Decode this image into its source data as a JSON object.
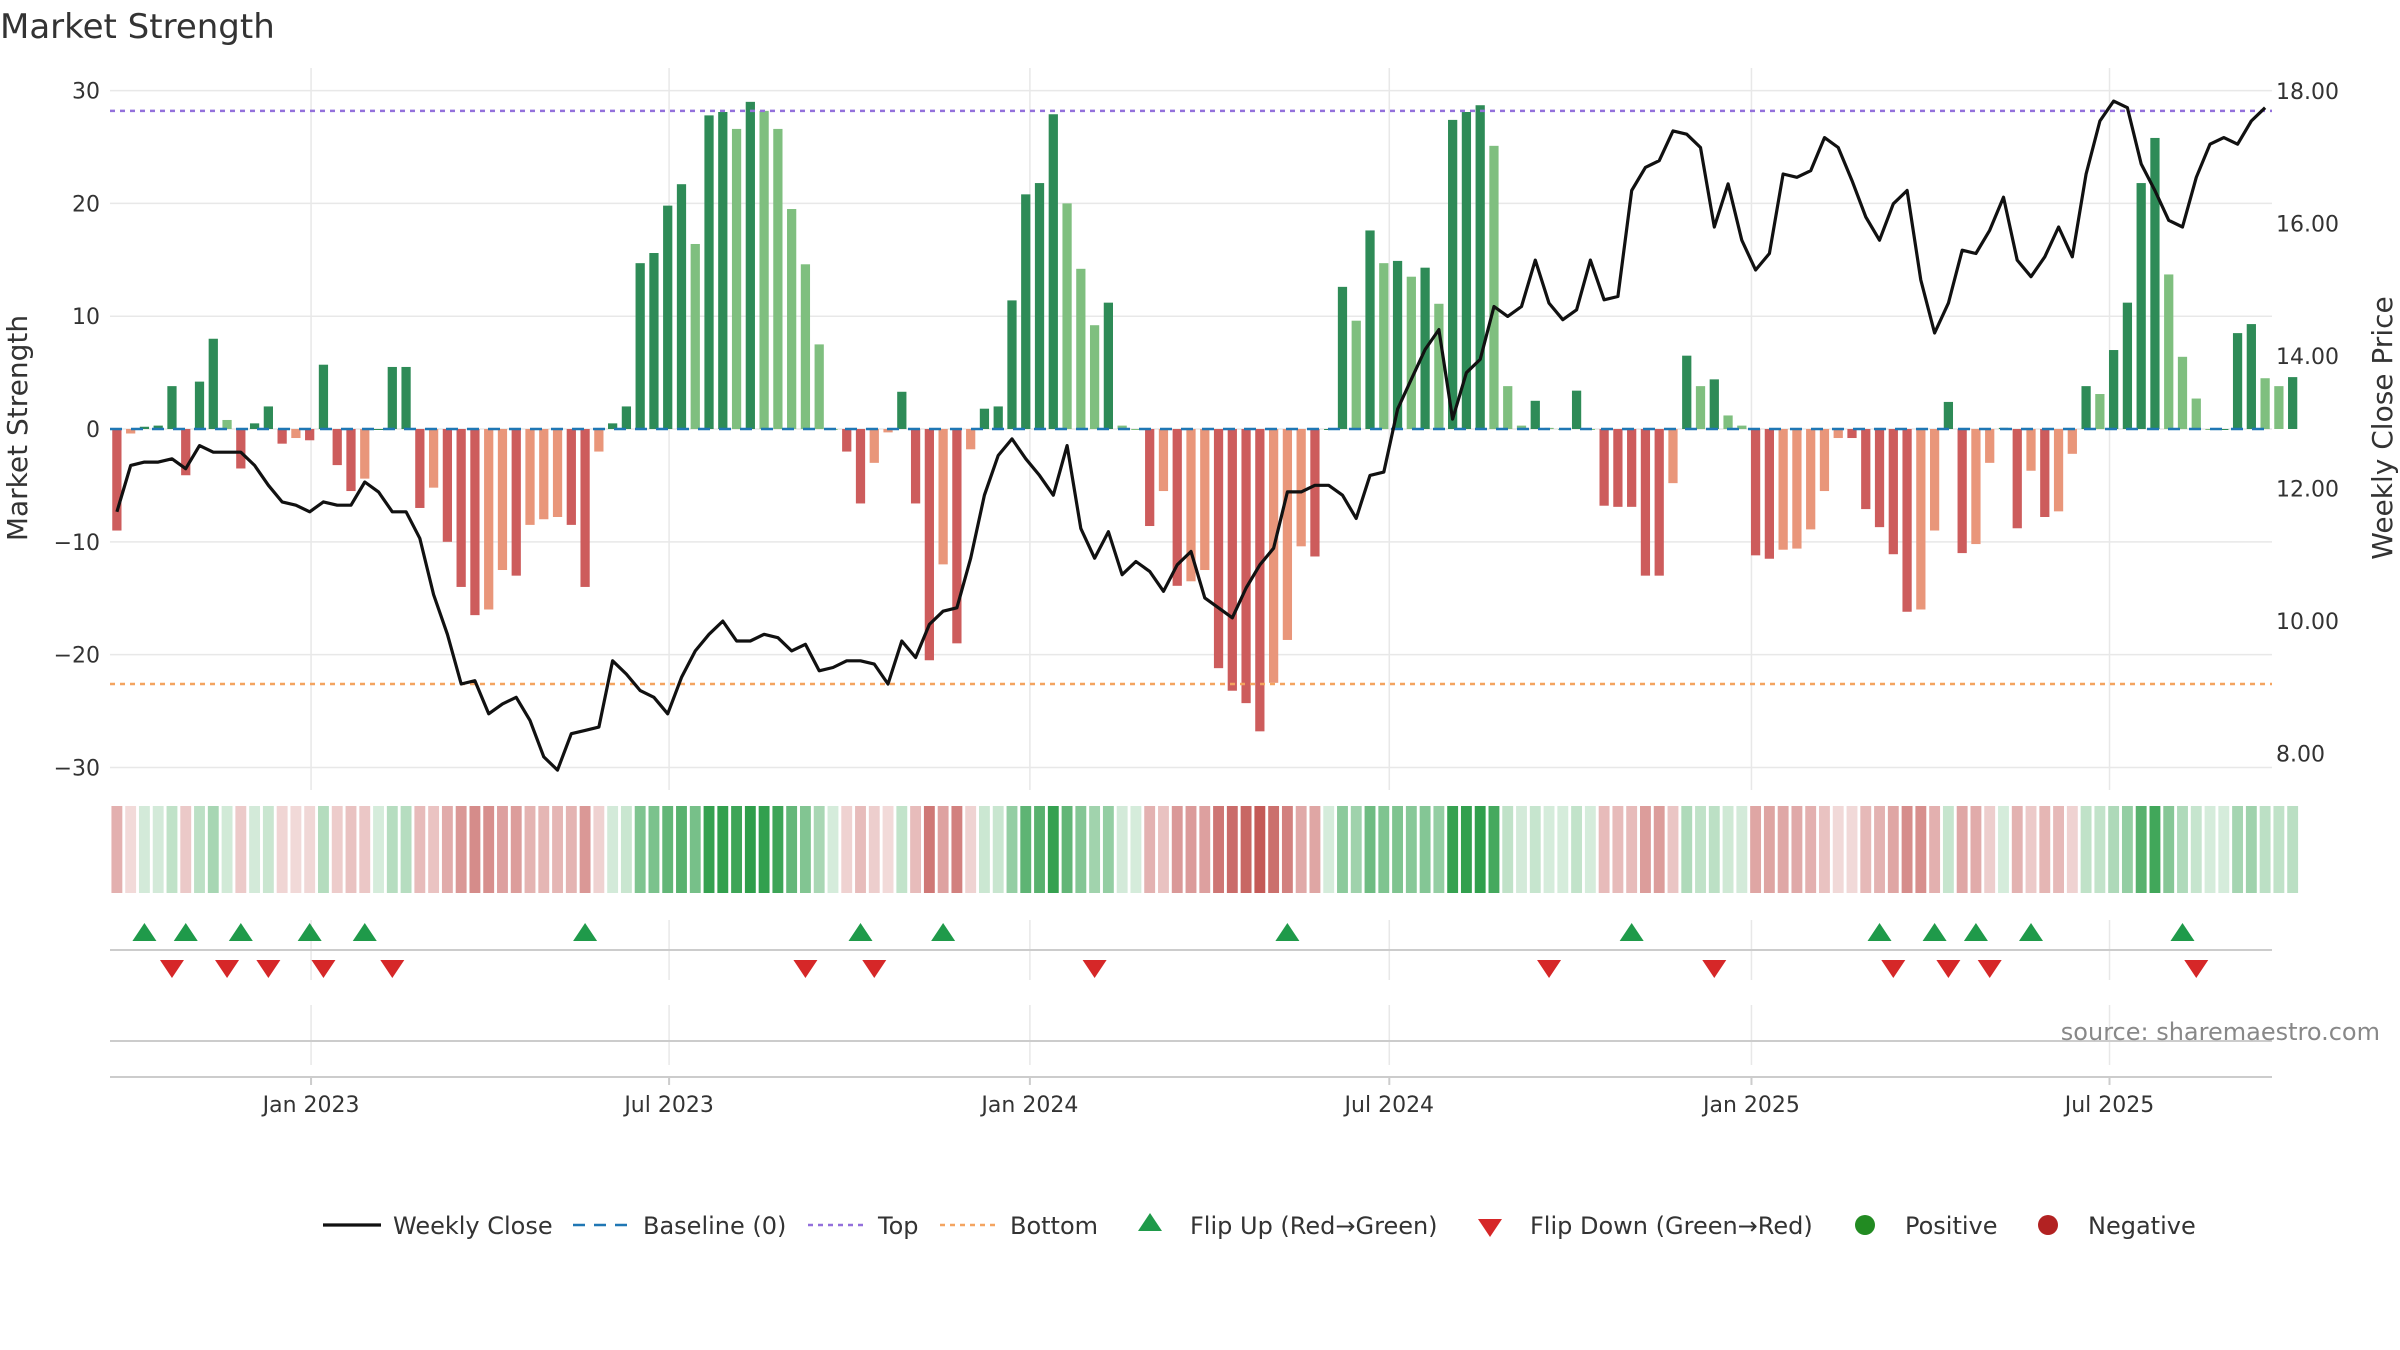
{
  "chart_data": {
    "type": "bar",
    "title": "Market Strength",
    "ylabel_left": "Market Strength",
    "ylabel_right": "Weekly Close Price",
    "source_text": "source: sharemaestro.com",
    "left_ylim": [
      -32,
      32
    ],
    "left_ticks": [
      30,
      20,
      10,
      0,
      -10,
      -20,
      -30
    ],
    "left_tick_labels": [
      "30",
      "20",
      "10",
      "0",
      "−10",
      "−20",
      "−30"
    ],
    "right_ylim": [
      7.45,
      18.35
    ],
    "right_ticks": [
      18,
      16,
      14,
      12,
      10,
      8
    ],
    "right_tick_labels": [
      "18.00",
      "16.00",
      "14.00",
      "12.00",
      "10.00",
      "8.00"
    ],
    "x_range": [
      0,
      157
    ],
    "x_ticks": [
      {
        "label": "Jan 2023",
        "x": 14.6
      },
      {
        "label": "Jul 2023",
        "x": 40.6
      },
      {
        "label": "Jan 2024",
        "x": 66.8
      },
      {
        "label": "Jul 2024",
        "x": 92.9
      },
      {
        "label": "Jan 2025",
        "x": 119.2
      },
      {
        "label": "Jul 2025",
        "x": 145.2
      }
    ],
    "top_line": 28.2,
    "bottom_line": -22.6,
    "strength": [
      -9,
      -0.4,
      0.2,
      0.3,
      3.8,
      -4.1,
      4.2,
      8,
      0.8,
      -3.5,
      0.5,
      2,
      -1.3,
      -0.8,
      -1,
      5.7,
      -3.2,
      -5.5,
      -4.4,
      0,
      5.5,
      5.5,
      -7,
      -5.2,
      -10,
      -14,
      -16.5,
      -16,
      -12.5,
      -13,
      -8.5,
      -8,
      -7.8,
      -8.5,
      -14,
      -2,
      0.5,
      2,
      14.7,
      15.6,
      19.8,
      21.7,
      16.4,
      27.8,
      28.1,
      26.6,
      29,
      28.2,
      26.6,
      19.5,
      14.6,
      7.5,
      0,
      -2,
      -6.6,
      -3,
      -0.3,
      3.3,
      -6.6,
      -20.5,
      -12,
      -19,
      -1.8,
      1.8,
      2,
      11.4,
      20.8,
      21.8,
      27.9,
      20,
      14.2,
      9.2,
      11.2,
      0.3,
      0,
      -8.6,
      -5.5,
      -13.9,
      -13.5,
      -12.5,
      -21.2,
      -23.2,
      -24.3,
      -26.8,
      -22.5,
      -18.7,
      -10.4,
      -11.3,
      0,
      12.6,
      9.6,
      17.6,
      14.7,
      14.9,
      13.5,
      14.3,
      11.1,
      27.4,
      28.1,
      28.7,
      25.1,
      3.8,
      0.3,
      2.5,
      0.1,
      0,
      3.4,
      0,
      -6.8,
      -6.9,
      -6.9,
      -13,
      -13,
      -4.8,
      6.5,
      3.8,
      4.4,
      1.2,
      0.3,
      -11.2,
      -11.5,
      -10.7,
      -10.6,
      -8.9,
      -5.5,
      -0.8,
      -0.8,
      -7.1,
      -8.7,
      -11.1,
      -16.2,
      -16,
      -9,
      2.4,
      -11,
      -10.2,
      -3,
      0.1,
      -8.8,
      -3.7,
      -7.8,
      -7.3,
      -2.2,
      3.8,
      3.1,
      7,
      11.2,
      21.8,
      25.8,
      13.7,
      6.4,
      2.7,
      0,
      0,
      8.5,
      9.3,
      4.5,
      3.8,
      4.6
    ],
    "weekly_close": [
      [
        0,
        11.65
      ],
      [
        1,
        12.35
      ],
      [
        2,
        12.4
      ],
      [
        3,
        12.4
      ],
      [
        4,
        12.45
      ],
      [
        5,
        12.3
      ],
      [
        6,
        12.65
      ],
      [
        7,
        12.55
      ],
      [
        8,
        12.55
      ],
      [
        9,
        12.55
      ],
      [
        10,
        12.35
      ],
      [
        11,
        12.05
      ],
      [
        12,
        11.8
      ],
      [
        13,
        11.75
      ],
      [
        14,
        11.65
      ],
      [
        15,
        11.8
      ],
      [
        16,
        11.75
      ],
      [
        17,
        11.75
      ],
      [
        18,
        12.1
      ],
      [
        19,
        11.95
      ],
      [
        20,
        11.65
      ],
      [
        21,
        11.65
      ],
      [
        22,
        11.25
      ],
      [
        23,
        10.4
      ],
      [
        24,
        9.8
      ],
      [
        25,
        9.05
      ],
      [
        26,
        9.1
      ],
      [
        27,
        8.6
      ],
      [
        28,
        8.75
      ],
      [
        29,
        8.85
      ],
      [
        30,
        8.5
      ],
      [
        31,
        7.95
      ],
      [
        32,
        7.75
      ],
      [
        33,
        8.3
      ],
      [
        34,
        8.35
      ],
      [
        35,
        8.4
      ],
      [
        36,
        9.4
      ],
      [
        37,
        9.2
      ],
      [
        38,
        8.95
      ],
      [
        39,
        8.85
      ],
      [
        40,
        8.6
      ],
      [
        41,
        9.15
      ],
      [
        42,
        9.55
      ],
      [
        43,
        9.8
      ],
      [
        44,
        10.0
      ],
      [
        45,
        9.7
      ],
      [
        46,
        9.7
      ],
      [
        47,
        9.8
      ],
      [
        48,
        9.75
      ],
      [
        49,
        9.55
      ],
      [
        50,
        9.65
      ],
      [
        51,
        9.25
      ],
      [
        52,
        9.3
      ],
      [
        53,
        9.4
      ],
      [
        54,
        9.4
      ],
      [
        55,
        9.35
      ],
      [
        56,
        9.05
      ],
      [
        57,
        9.7
      ],
      [
        58,
        9.45
      ],
      [
        59,
        9.95
      ],
      [
        60,
        10.15
      ],
      [
        61,
        10.2
      ],
      [
        62,
        10.95
      ],
      [
        63,
        11.9
      ],
      [
        64,
        12.5
      ],
      [
        65,
        12.75
      ],
      [
        66,
        12.45
      ],
      [
        67,
        12.2
      ],
      [
        68,
        11.9
      ],
      [
        69,
        12.65
      ],
      [
        70,
        11.4
      ],
      [
        71,
        10.95
      ],
      [
        72,
        11.35
      ],
      [
        73,
        10.7
      ],
      [
        74,
        10.9
      ],
      [
        75,
        10.75
      ],
      [
        76,
        10.45
      ],
      [
        77,
        10.85
      ],
      [
        78,
        11.05
      ],
      [
        79,
        10.35
      ],
      [
        80,
        10.2
      ],
      [
        81,
        10.05
      ],
      [
        82,
        10.5
      ],
      [
        83,
        10.85
      ],
      [
        84,
        11.1
      ],
      [
        85,
        11.95
      ],
      [
        86,
        11.95
      ],
      [
        87,
        12.05
      ],
      [
        88,
        12.05
      ],
      [
        89,
        11.9
      ],
      [
        90,
        11.55
      ],
      [
        91,
        12.2
      ],
      [
        92,
        12.25
      ],
      [
        93,
        13.2
      ],
      [
        94,
        13.65
      ],
      [
        95,
        14.1
      ],
      [
        96,
        14.4
      ],
      [
        97,
        13.05
      ],
      [
        98,
        13.75
      ],
      [
        99,
        13.95
      ],
      [
        100,
        14.75
      ],
      [
        101,
        14.6
      ],
      [
        102,
        14.75
      ],
      [
        103,
        15.45
      ],
      [
        104,
        14.8
      ],
      [
        105,
        14.55
      ],
      [
        106,
        14.7
      ],
      [
        107,
        15.45
      ],
      [
        108,
        14.85
      ],
      [
        109,
        14.9
      ],
      [
        110,
        16.5
      ],
      [
        111,
        16.85
      ],
      [
        112,
        16.95
      ],
      [
        113,
        17.4
      ],
      [
        114,
        17.35
      ],
      [
        115,
        17.15
      ],
      [
        116,
        15.95
      ],
      [
        117,
        16.6
      ],
      [
        118,
        15.75
      ],
      [
        119,
        15.3
      ],
      [
        120,
        15.55
      ],
      [
        121,
        16.75
      ],
      [
        122,
        16.7
      ],
      [
        123,
        16.8
      ],
      [
        124,
        17.3
      ],
      [
        125,
        17.15
      ],
      [
        126,
        16.65
      ],
      [
        127,
        16.1
      ],
      [
        128,
        15.75
      ],
      [
        129,
        16.3
      ],
      [
        130,
        16.5
      ],
      [
        131,
        15.15
      ],
      [
        132,
        14.35
      ],
      [
        133,
        14.8
      ],
      [
        134,
        15.6
      ],
      [
        135,
        15.55
      ],
      [
        136,
        15.9
      ],
      [
        137,
        16.4
      ],
      [
        138,
        15.45
      ],
      [
        139,
        15.2
      ],
      [
        140,
        15.5
      ],
      [
        141,
        15.95
      ],
      [
        142,
        15.5
      ],
      [
        143,
        16.75
      ],
      [
        144,
        17.55
      ],
      [
        145,
        17.85
      ],
      [
        146,
        17.75
      ],
      [
        147,
        16.9
      ],
      [
        148,
        16.5
      ],
      [
        149,
        16.05
      ],
      [
        150,
        15.95
      ],
      [
        151,
        16.7
      ],
      [
        152,
        17.2
      ],
      [
        153,
        17.3
      ],
      [
        154,
        17.2
      ],
      [
        155,
        17.55
      ],
      [
        156,
        17.75
      ]
    ],
    "flip_up_x": [
      2,
      5,
      9,
      14,
      18,
      34,
      54,
      60,
      85,
      110,
      128,
      132,
      135,
      139,
      150
    ],
    "flip_down_x": [
      4,
      8,
      11,
      15,
      20,
      50,
      55,
      71,
      104,
      116,
      129,
      133,
      136,
      151
    ],
    "legend": [
      {
        "label": "Weekly Close",
        "marker": "line"
      },
      {
        "label": "Baseline (0)",
        "marker": "dashed"
      },
      {
        "label": "Top",
        "marker": "dotted"
      },
      {
        "label": "Bottom",
        "marker": "dotted"
      },
      {
        "label": "Flip Up (Red→Green)",
        "marker": "triangle-up"
      },
      {
        "label": "Flip Down (Green→Red)",
        "marker": "triangle-down"
      },
      {
        "label": "Positive",
        "marker": "circle"
      },
      {
        "label": "Negative",
        "marker": "circle"
      }
    ]
  },
  "colors": {
    "pos_strong": "#2e8b57",
    "pos_weak": "#7fbf7f",
    "neg_strong": "#cd5c5c",
    "neg_weak": "#e9967a",
    "price_line": "#111111",
    "baseline": "#1f77b4",
    "top_line": "#9370db",
    "bottom_line": "#f4a460",
    "flip_up": "#1f9a4a",
    "flip_down": "#d62728",
    "positive_dot": "#228b22",
    "negative_dot": "#b22222",
    "grid": "#e8e8e8",
    "axis": "#cccccc",
    "strip_pos": "#2e9e4a",
    "strip_neg": "#c0504d"
  }
}
